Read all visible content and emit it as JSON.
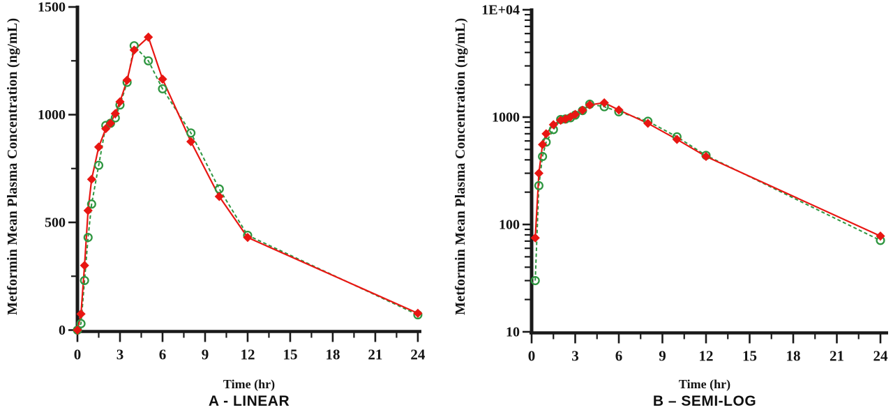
{
  "figure": {
    "background": "#ffffff",
    "description": "Two-panel pharmacokinetic concentration-time profile, linear and semi-log views"
  },
  "colors": {
    "red_series": "#e81612",
    "green_series": "#2e9640",
    "axis": "#1a1a1a",
    "text": "#141414"
  },
  "chart_data": {
    "type": "line",
    "x": [
      0,
      0.25,
      0.5,
      0.75,
      1,
      1.5,
      2,
      2.33,
      2.67,
      3,
      3.5,
      4,
      5,
      6,
      8,
      10,
      12,
      24
    ],
    "series": [
      {
        "name": "red-solid-filled-diamonds",
        "marker": "filled-diamond",
        "line_style": "solid",
        "color": "#e81612",
        "values": [
          0,
          75,
          300,
          555,
          700,
          850,
          935,
          960,
          1005,
          1060,
          1160,
          1300,
          1360,
          1165,
          875,
          620,
          430,
          78
        ]
      },
      {
        "name": "green-dashed-open-circles",
        "marker": "open-circle",
        "line_style": "dashed",
        "color": "#2e9640",
        "values": [
          0,
          30,
          230,
          430,
          585,
          765,
          950,
          960,
          985,
          1045,
          1150,
          1320,
          1250,
          1120,
          915,
          655,
          440,
          71
        ]
      }
    ],
    "panels": [
      {
        "id": "A",
        "scale": "linear",
        "caption": "A - LINEAR",
        "xlabel": "Time (hr)",
        "ylabel": "Metformin Mean Plasma Concentration (ng/mL)",
        "xlim": [
          0,
          24
        ],
        "ylim": [
          0,
          1500
        ],
        "x_major_ticks": [
          0,
          3,
          6,
          9,
          12,
          15,
          18,
          21,
          24
        ],
        "x_tick_labels": [
          "0",
          "3",
          "6",
          "9",
          "12",
          "15",
          "18",
          "21",
          "24"
        ],
        "x_minor_ticks": [
          1.5,
          4.5,
          7.5,
          10.5,
          13.5,
          16.5,
          19.5,
          22.5
        ],
        "y_major_ticks": [
          0,
          500,
          1000,
          1500
        ],
        "y_tick_labels": [
          "0",
          "500",
          "1000",
          "1500"
        ],
        "y_minor_ticks": [
          250,
          750,
          1250
        ],
        "grid": false,
        "legend": "none"
      },
      {
        "id": "B",
        "scale": "log",
        "caption": "B – SEMI-LOG",
        "xlabel": "Time (hr)",
        "ylabel": "Metformin Mean Plasma Concentration (ng/mL)",
        "xlim": [
          0,
          24
        ],
        "ylim": [
          10,
          10000
        ],
        "x_major_ticks": [
          0,
          3,
          6,
          9,
          12,
          15,
          18,
          21,
          24
        ],
        "x_tick_labels": [
          "0",
          "3",
          "6",
          "9",
          "12",
          "15",
          "18",
          "21",
          "24"
        ],
        "x_minor_ticks": [
          1.5,
          4.5,
          7.5,
          10.5,
          13.5,
          16.5,
          19.5,
          22.5
        ],
        "y_major_ticks": [
          10,
          100,
          1000,
          10000
        ],
        "y_tick_labels": [
          "10",
          "100",
          "1000",
          "1E+04"
        ],
        "y_minor_rule": "2-9 per decade",
        "grid": false,
        "legend": "none"
      }
    ]
  }
}
